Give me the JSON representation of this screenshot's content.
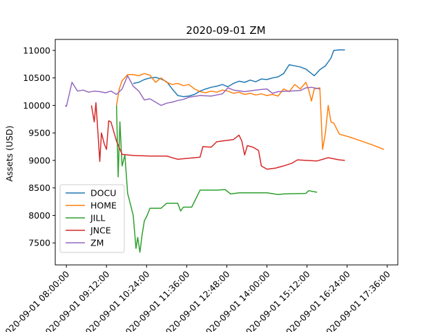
{
  "chart_data": {
    "type": "line",
    "title": "2020-09-01 ZM",
    "xlabel": "",
    "ylabel": "Assets (USD)",
    "xlim": [
      "2020-09-01 07:40:00",
      "2020-09-01 17:55:00"
    ],
    "ylim": [
      7100,
      11200
    ],
    "x_ticks": [
      "2020-09-01 08:00:00",
      "2020-09-01 09:12:00",
      "2020-09-01 10:24:00",
      "2020-09-01 11:36:00",
      "2020-09-01 12:48:00",
      "2020-09-01 14:00:00",
      "2020-09-01 15:12:00",
      "2020-09-01 16:24:00",
      "2020-09-01 17:36:00"
    ],
    "y_ticks": [
      7500,
      8000,
      8500,
      9000,
      9500,
      10000,
      10500,
      11000
    ],
    "grid": false,
    "legend_position": "lower-left",
    "series": [
      {
        "name": "DOCU",
        "color": "#1f77b4",
        "points": [
          [
            "2020-09-01 10:00:00",
            10400
          ],
          [
            "2020-09-01 10:10:00",
            10420
          ],
          [
            "2020-09-01 10:20:00",
            10470
          ],
          [
            "2020-09-01 10:30:00",
            10500
          ],
          [
            "2020-09-01 10:40:00",
            10510
          ],
          [
            "2020-09-01 10:50:00",
            10480
          ],
          [
            "2020-09-01 11:00:00",
            10430
          ],
          [
            "2020-09-01 11:10:00",
            10300
          ],
          [
            "2020-09-01 11:20:00",
            10180
          ],
          [
            "2020-09-01 11:30:00",
            10160
          ],
          [
            "2020-09-01 11:40:00",
            10170
          ],
          [
            "2020-09-01 11:50:00",
            10200
          ],
          [
            "2020-09-01 12:00:00",
            10260
          ],
          [
            "2020-09-01 12:10:00",
            10300
          ],
          [
            "2020-09-01 12:20:00",
            10330
          ],
          [
            "2020-09-01 12:30:00",
            10350
          ],
          [
            "2020-09-01 12:40:00",
            10380
          ],
          [
            "2020-09-01 12:50:00",
            10340
          ],
          [
            "2020-09-01 13:00:00",
            10400
          ],
          [
            "2020-09-01 13:10:00",
            10440
          ],
          [
            "2020-09-01 13:20:00",
            10420
          ],
          [
            "2020-09-01 13:30:00",
            10460
          ],
          [
            "2020-09-01 13:40:00",
            10430
          ],
          [
            "2020-09-01 13:50:00",
            10480
          ],
          [
            "2020-09-01 14:00:00",
            10470
          ],
          [
            "2020-09-01 14:10:00",
            10500
          ],
          [
            "2020-09-01 14:20:00",
            10520
          ],
          [
            "2020-09-01 14:30:00",
            10580
          ],
          [
            "2020-09-01 14:40:00",
            10740
          ],
          [
            "2020-09-01 14:50:00",
            10720
          ],
          [
            "2020-09-01 15:00:00",
            10700
          ],
          [
            "2020-09-01 15:10:00",
            10660
          ],
          [
            "2020-09-01 15:20:00",
            10580
          ],
          [
            "2020-09-01 15:25:00",
            10540
          ],
          [
            "2020-09-01 15:35:00",
            10650
          ],
          [
            "2020-09-01 15:45:00",
            10720
          ],
          [
            "2020-09-01 15:55:00",
            10860
          ],
          [
            "2020-09-01 16:00:00",
            11000
          ],
          [
            "2020-09-01 16:10:00",
            11010
          ],
          [
            "2020-09-01 16:20:00",
            11010
          ]
        ]
      },
      {
        "name": "HOME",
        "color": "#ff7f0e",
        "points": [
          [
            "2020-09-01 09:30:00",
            10000
          ],
          [
            "2020-09-01 09:35:00",
            10300
          ],
          [
            "2020-09-01 09:40:00",
            10450
          ],
          [
            "2020-09-01 09:50:00",
            10560
          ],
          [
            "2020-09-01 10:00:00",
            10560
          ],
          [
            "2020-09-01 10:10:00",
            10540
          ],
          [
            "2020-09-01 10:20:00",
            10580
          ],
          [
            "2020-09-01 10:30:00",
            10550
          ],
          [
            "2020-09-01 10:40:00",
            10420
          ],
          [
            "2020-09-01 10:50:00",
            10500
          ],
          [
            "2020-09-01 11:00:00",
            10420
          ],
          [
            "2020-09-01 11:10:00",
            10380
          ],
          [
            "2020-09-01 11:20:00",
            10400
          ],
          [
            "2020-09-01 11:30:00",
            10360
          ],
          [
            "2020-09-01 11:40:00",
            10380
          ],
          [
            "2020-09-01 11:50:00",
            10300
          ],
          [
            "2020-09-01 12:00:00",
            10250
          ],
          [
            "2020-09-01 12:10:00",
            10230
          ],
          [
            "2020-09-01 12:20:00",
            10260
          ],
          [
            "2020-09-01 12:30:00",
            10240
          ],
          [
            "2020-09-01 12:40:00",
            10280
          ],
          [
            "2020-09-01 12:50:00",
            10260
          ],
          [
            "2020-09-01 13:00:00",
            10220
          ],
          [
            "2020-09-01 13:10:00",
            10240
          ],
          [
            "2020-09-01 13:20:00",
            10200
          ],
          [
            "2020-09-01 13:30:00",
            10220
          ],
          [
            "2020-09-01 13:40:00",
            10190
          ],
          [
            "2020-09-01 13:50:00",
            10210
          ],
          [
            "2020-09-01 14:00:00",
            10180
          ],
          [
            "2020-09-01 14:10:00",
            10200
          ],
          [
            "2020-09-01 14:20:00",
            10170
          ],
          [
            "2020-09-01 14:30:00",
            10300
          ],
          [
            "2020-09-01 14:40:00",
            10250
          ],
          [
            "2020-09-01 14:50:00",
            10380
          ],
          [
            "2020-09-01 15:00:00",
            10300
          ],
          [
            "2020-09-01 15:10:00",
            10420
          ],
          [
            "2020-09-01 15:15:00",
            10280
          ],
          [
            "2020-09-01 15:20:00",
            10080
          ],
          [
            "2020-09-01 15:25:00",
            10300
          ],
          [
            "2020-09-01 15:35:00",
            10320
          ],
          [
            "2020-09-01 15:40:00",
            9200
          ],
          [
            "2020-09-01 15:45:00",
            9500
          ],
          [
            "2020-09-01 15:50:00",
            10000
          ],
          [
            "2020-09-01 15:55:00",
            9700
          ],
          [
            "2020-09-01 16:00:00",
            9680
          ],
          [
            "2020-09-01 16:10:00",
            9480
          ],
          [
            "2020-09-01 16:30:00",
            9420
          ],
          [
            "2020-09-01 16:50:00",
            9350
          ],
          [
            "2020-09-01 17:10:00",
            9280
          ],
          [
            "2020-09-01 17:30:00",
            9200
          ]
        ]
      },
      {
        "name": "JILL",
        "color": "#2ca02c",
        "points": [
          [
            "2020-09-01 09:30:00",
            10000
          ],
          [
            "2020-09-01 09:33:00",
            8700
          ],
          [
            "2020-09-01 09:36:00",
            9700
          ],
          [
            "2020-09-01 09:40:00",
            8900
          ],
          [
            "2020-09-01 09:45:00",
            9100
          ],
          [
            "2020-09-01 09:50:00",
            8400
          ],
          [
            "2020-09-01 09:55:00",
            8200
          ],
          [
            "2020-09-01 10:00:00",
            8000
          ],
          [
            "2020-09-01 10:05:00",
            7400
          ],
          [
            "2020-09-01 10:08:00",
            7600
          ],
          [
            "2020-09-01 10:12:00",
            7330
          ],
          [
            "2020-09-01 10:16:00",
            7650
          ],
          [
            "2020-09-01 10:20:00",
            7900
          ],
          [
            "2020-09-01 10:25:00",
            8000
          ],
          [
            "2020-09-01 10:30:00",
            8130
          ],
          [
            "2020-09-01 10:50:00",
            8130
          ],
          [
            "2020-09-01 11:00:00",
            8220
          ],
          [
            "2020-09-01 11:20:00",
            8220
          ],
          [
            "2020-09-01 11:25:00",
            8080
          ],
          [
            "2020-09-01 11:30:00",
            8150
          ],
          [
            "2020-09-01 11:45:00",
            8150
          ],
          [
            "2020-09-01 12:00:00",
            8460
          ],
          [
            "2020-09-01 12:30:00",
            8460
          ],
          [
            "2020-09-01 12:45:00",
            8470
          ],
          [
            "2020-09-01 12:55:00",
            8390
          ],
          [
            "2020-09-01 13:10:00",
            8410
          ],
          [
            "2020-09-01 14:00:00",
            8410
          ],
          [
            "2020-09-01 14:20:00",
            8380
          ],
          [
            "2020-09-01 14:30:00",
            8390
          ],
          [
            "2020-09-01 15:10:00",
            8400
          ],
          [
            "2020-09-01 15:15:00",
            8450
          ],
          [
            "2020-09-01 15:30:00",
            8420
          ]
        ]
      },
      {
        "name": "JNCE",
        "color": "#d62728",
        "points": [
          [
            "2020-09-01 08:45:00",
            10000
          ],
          [
            "2020-09-01 08:50:00",
            9700
          ],
          [
            "2020-09-01 08:53:00",
            10050
          ],
          [
            "2020-09-01 08:56:00",
            9600
          ],
          [
            "2020-09-01 09:00:00",
            8980
          ],
          [
            "2020-09-01 09:03:00",
            9500
          ],
          [
            "2020-09-01 09:08:00",
            9300
          ],
          [
            "2020-09-01 09:12:00",
            9200
          ],
          [
            "2020-09-01 09:16:00",
            9720
          ],
          [
            "2020-09-01 09:20:00",
            9700
          ],
          [
            "2020-09-01 09:30:00",
            9350
          ],
          [
            "2020-09-01 09:40:00",
            9110
          ],
          [
            "2020-09-01 10:00:00",
            9090
          ],
          [
            "2020-09-01 10:30:00",
            9080
          ],
          [
            "2020-09-01 11:00:00",
            9080
          ],
          [
            "2020-09-01 11:20:00",
            9020
          ],
          [
            "2020-09-01 11:40:00",
            9040
          ],
          [
            "2020-09-01 12:00:00",
            9060
          ],
          [
            "2020-09-01 12:05:00",
            9250
          ],
          [
            "2020-09-01 12:20:00",
            9240
          ],
          [
            "2020-09-01 12:30:00",
            9340
          ],
          [
            "2020-09-01 13:00:00",
            9380
          ],
          [
            "2020-09-01 13:10:00",
            9460
          ],
          [
            "2020-09-01 13:15:00",
            9350
          ],
          [
            "2020-09-01 13:20:00",
            9100
          ],
          [
            "2020-09-01 13:25:00",
            9270
          ],
          [
            "2020-09-01 13:35:00",
            9240
          ],
          [
            "2020-09-01 13:45:00",
            9180
          ],
          [
            "2020-09-01 13:50:00",
            8900
          ],
          [
            "2020-09-01 14:00:00",
            8840
          ],
          [
            "2020-09-01 14:15:00",
            8860
          ],
          [
            "2020-09-01 14:30:00",
            8900
          ],
          [
            "2020-09-01 14:45:00",
            8950
          ],
          [
            "2020-09-01 14:55:00",
            9010
          ],
          [
            "2020-09-01 15:10:00",
            9000
          ],
          [
            "2020-09-01 15:30:00",
            8990
          ],
          [
            "2020-09-01 15:50:00",
            9050
          ],
          [
            "2020-09-01 16:10:00",
            9010
          ],
          [
            "2020-09-01 16:20:00",
            9000
          ]
        ]
      },
      {
        "name": "ZM",
        "color": "#9467bd",
        "points": [
          [
            "2020-09-01 07:58:00",
            10000
          ],
          [
            "2020-09-01 08:00:00",
            9980
          ],
          [
            "2020-09-01 08:05:00",
            10200
          ],
          [
            "2020-09-01 08:10:00",
            10420
          ],
          [
            "2020-09-01 08:20:00",
            10260
          ],
          [
            "2020-09-01 08:30:00",
            10280
          ],
          [
            "2020-09-01 08:40:00",
            10240
          ],
          [
            "2020-09-01 08:50:00",
            10260
          ],
          [
            "2020-09-01 09:00:00",
            10250
          ],
          [
            "2020-09-01 09:10:00",
            10230
          ],
          [
            "2020-09-01 09:20:00",
            10260
          ],
          [
            "2020-09-01 09:30:00",
            10200
          ],
          [
            "2020-09-01 09:40:00",
            10300
          ],
          [
            "2020-09-01 09:50:00",
            10540
          ],
          [
            "2020-09-01 10:00:00",
            10350
          ],
          [
            "2020-09-01 10:10:00",
            10260
          ],
          [
            "2020-09-01 10:20:00",
            10100
          ],
          [
            "2020-09-01 10:30:00",
            10120
          ],
          [
            "2020-09-01 10:40:00",
            10060
          ],
          [
            "2020-09-01 10:50:00",
            10000
          ],
          [
            "2020-09-01 11:00:00",
            10040
          ],
          [
            "2020-09-01 11:10:00",
            10060
          ],
          [
            "2020-09-01 11:20:00",
            10090
          ],
          [
            "2020-09-01 11:30:00",
            10110
          ],
          [
            "2020-09-01 11:40:00",
            10150
          ],
          [
            "2020-09-01 12:00:00",
            10180
          ],
          [
            "2020-09-01 12:20:00",
            10170
          ],
          [
            "2020-09-01 12:40:00",
            10210
          ],
          [
            "2020-09-01 12:50:00",
            10320
          ],
          [
            "2020-09-01 13:00:00",
            10280
          ],
          [
            "2020-09-01 13:20:00",
            10250
          ],
          [
            "2020-09-01 13:40:00",
            10280
          ],
          [
            "2020-09-01 14:00:00",
            10300
          ],
          [
            "2020-09-01 14:10:00",
            10220
          ],
          [
            "2020-09-01 14:20:00",
            10250
          ],
          [
            "2020-09-01 14:40:00",
            10260
          ],
          [
            "2020-09-01 15:00:00",
            10270
          ],
          [
            "2020-09-01 15:10:00",
            10320
          ],
          [
            "2020-09-01 15:20:00",
            10330
          ],
          [
            "2020-09-01 15:35:00",
            10300
          ]
        ]
      }
    ]
  }
}
